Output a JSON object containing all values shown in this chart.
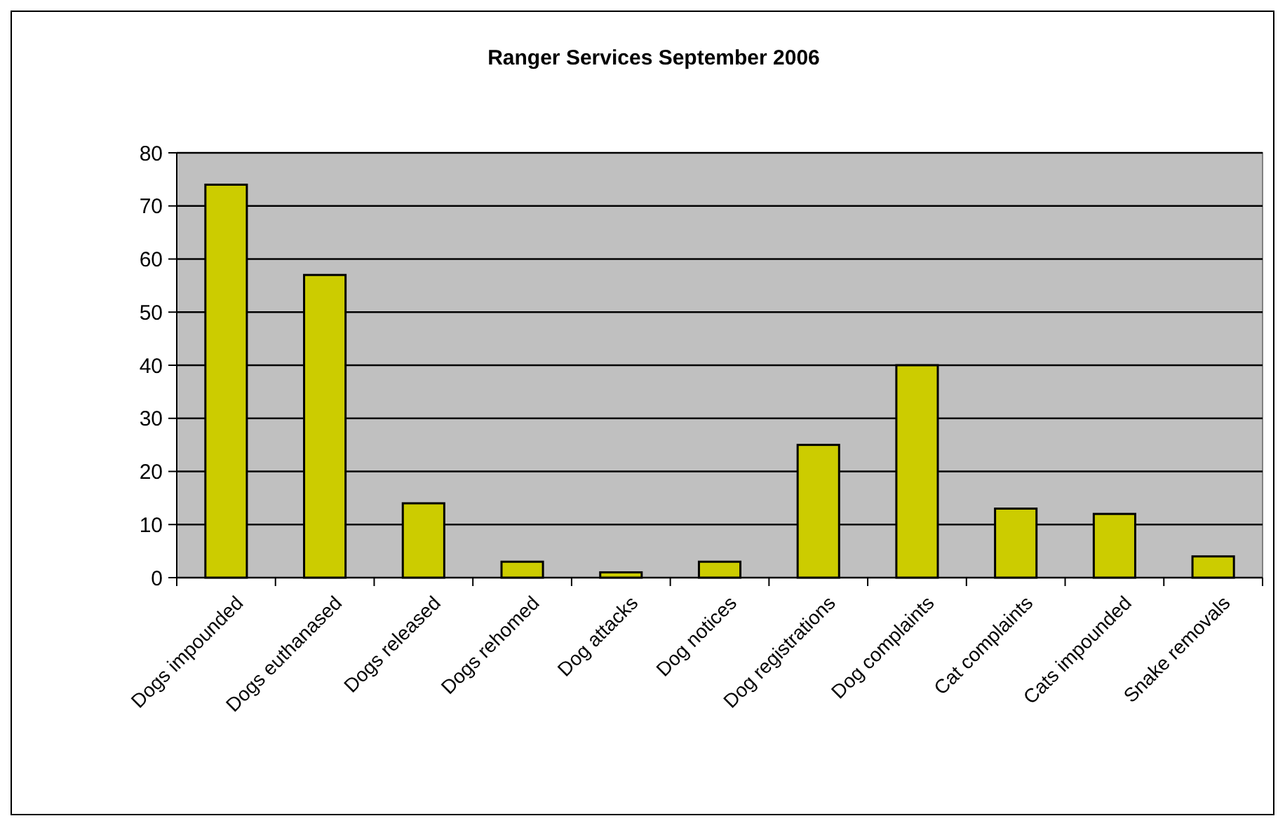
{
  "chart_data": {
    "type": "bar",
    "title": "Ranger Services September 2006",
    "categories": [
      "Dogs impounded",
      "Dogs euthanased",
      "Dogs released",
      "Dogs rehomed",
      "Dog attacks",
      "Dog notices",
      "Dog registrations",
      "Dog complaints",
      "Cat complaints",
      "Cats impounded",
      "Snake removals"
    ],
    "values": [
      74,
      57,
      14,
      3,
      1,
      3,
      25,
      40,
      13,
      12,
      4
    ],
    "color": "#cccc00",
    "ylim": [
      0,
      80
    ],
    "yticks": [
      0,
      10,
      20,
      30,
      40,
      50,
      60,
      70,
      80
    ],
    "grid": "y"
  }
}
